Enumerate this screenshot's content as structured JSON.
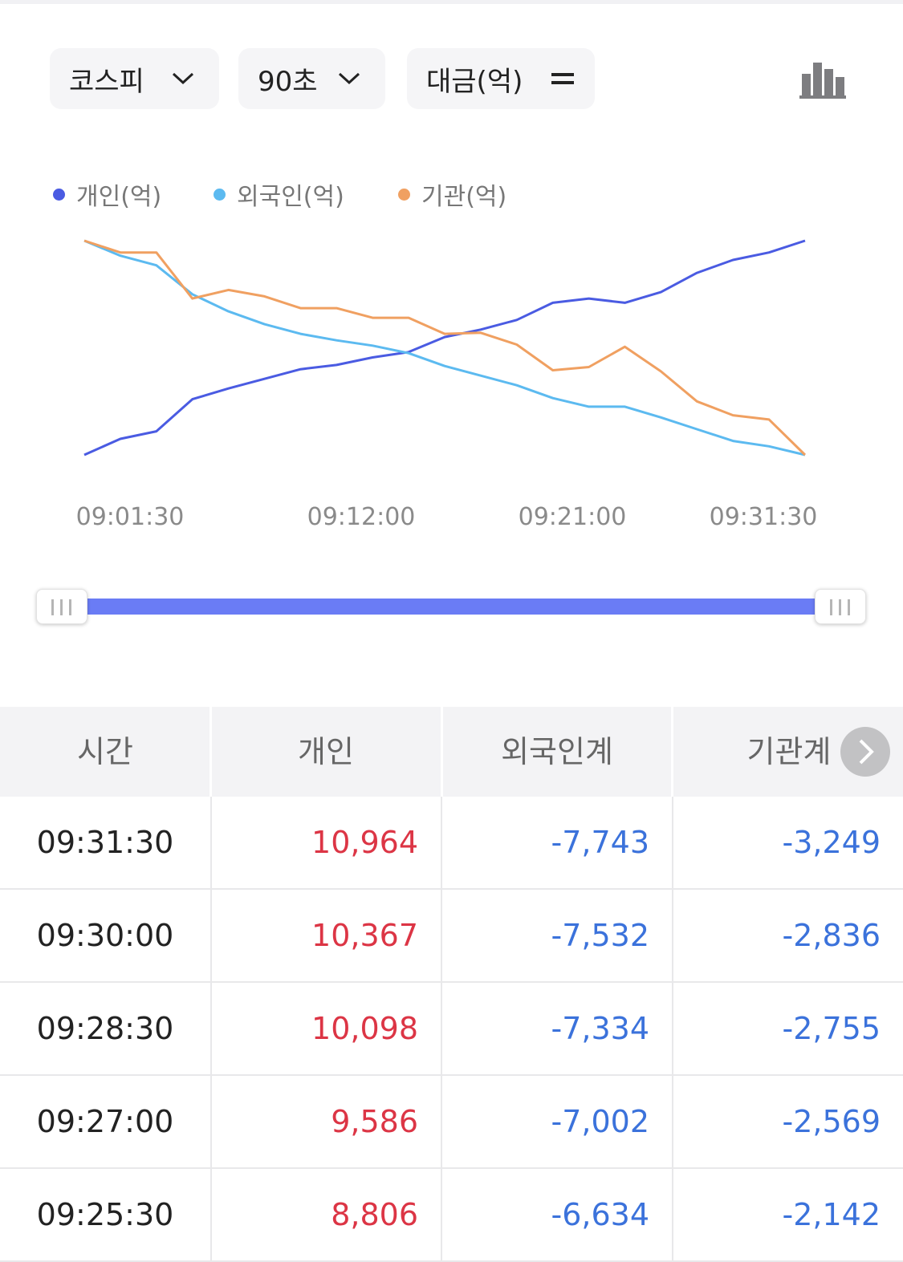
{
  "toolbar": {
    "market": "코스피",
    "interval": "90초",
    "unit": "대금(억)"
  },
  "colors": {
    "individual": "#4a5be2",
    "foreign": "#5cbaf0",
    "institution": "#f0a061",
    "positive": "#dc3545",
    "negative": "#3b72db",
    "range": "#6a7cf5"
  },
  "legend": {
    "individual": "개인(억)",
    "foreign": "외국인(억)",
    "institution": "기관(억)"
  },
  "chart_data": {
    "type": "line",
    "x_ticks": [
      "09:01:30",
      "09:12:00",
      "09:21:00",
      "09:31:30"
    ],
    "series": [
      {
        "name": "개인(억)",
        "values": [
          0.0,
          0.075,
          0.11,
          0.26,
          0.31,
          0.355,
          0.4,
          0.42,
          0.455,
          0.48,
          0.55,
          0.585,
          0.63,
          0.71,
          0.73,
          0.71,
          0.76,
          0.85,
          0.91,
          0.945,
          1.0
        ]
      },
      {
        "name": "외국인(억)",
        "values": [
          1.0,
          0.93,
          0.885,
          0.75,
          0.67,
          0.61,
          0.565,
          0.535,
          0.51,
          0.475,
          0.415,
          0.37,
          0.325,
          0.265,
          0.225,
          0.225,
          0.175,
          0.12,
          0.065,
          0.04,
          0.0
        ]
      },
      {
        "name": "기관(억)",
        "values": [
          1.0,
          0.945,
          0.945,
          0.73,
          0.77,
          0.74,
          0.685,
          0.685,
          0.64,
          0.64,
          0.565,
          0.57,
          0.515,
          0.395,
          0.41,
          0.505,
          0.39,
          0.25,
          0.185,
          0.165,
          0.0
        ]
      }
    ]
  },
  "table": {
    "headers": [
      "시간",
      "개인",
      "외국인계",
      "기관계"
    ],
    "rows": [
      {
        "time": "09:31:30",
        "individual": "10,964",
        "foreign": "-7,743",
        "institution": "-3,249"
      },
      {
        "time": "09:30:00",
        "individual": "10,367",
        "foreign": "-7,532",
        "institution": "-2,836"
      },
      {
        "time": "09:28:30",
        "individual": "10,098",
        "foreign": "-7,334",
        "institution": "-2,755"
      },
      {
        "time": "09:27:00",
        "individual": "9,586",
        "foreign": "-7,002",
        "institution": "-2,569"
      },
      {
        "time": "09:25:30",
        "individual": "8,806",
        "foreign": "-6,634",
        "institution": "-2,142"
      }
    ]
  }
}
